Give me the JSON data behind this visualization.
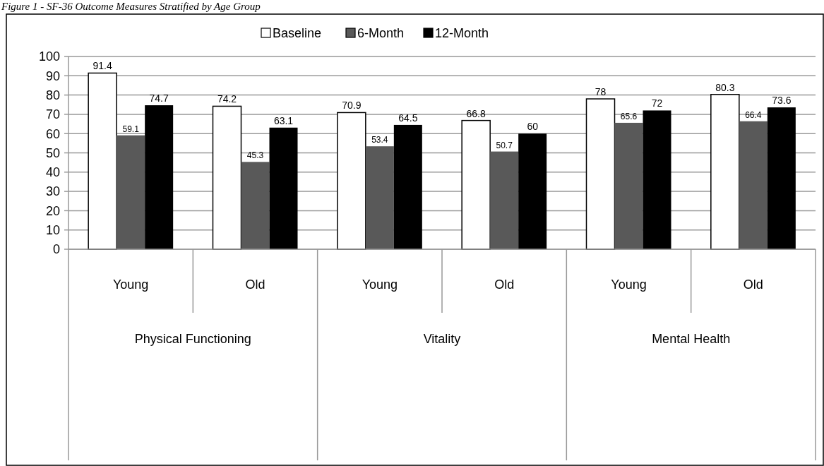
{
  "chart_data": {
    "type": "bar",
    "title": "Figure 1 - SF-36 Outcome Measures Stratified by Age Group",
    "categories": [
      "Young",
      "Old",
      "Young",
      "Old",
      "Young",
      "Old"
    ],
    "series": [
      {
        "name": "Baseline",
        "color": "#ffffff",
        "values": [
          91.4,
          74.2,
          70.9,
          66.8,
          78,
          80.3
        ]
      },
      {
        "name": "6-Month",
        "color": "#595959",
        "values": [
          59.1,
          45.3,
          53.4,
          50.7,
          65.6,
          66.4
        ]
      },
      {
        "name": "12-Month",
        "color": "#000000",
        "values": [
          74.7,
          63.1,
          64.5,
          60,
          72,
          73.6
        ]
      }
    ],
    "annotations": [
      "Physical Functioning",
      "Vitality",
      "Mental Health"
    ],
    "ylim": [
      0,
      100
    ],
    "yticks": [
      0,
      10,
      20,
      30,
      40,
      50,
      60,
      70,
      80,
      90,
      100
    ],
    "grid": "y",
    "legend": "top",
    "data_labels": true
  }
}
